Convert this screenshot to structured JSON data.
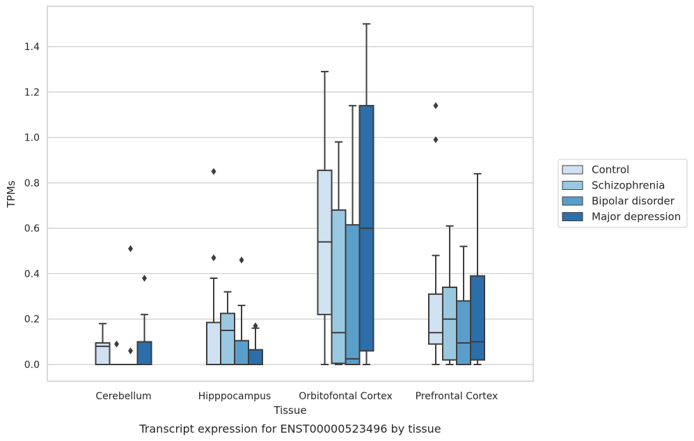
{
  "caption": "Transcript expression for ENST00000523496 by tissue",
  "chart_data": {
    "type": "boxplot",
    "xlabel": "Tissue",
    "ylabel": "TPMs",
    "ylim": [
      -0.07,
      1.55
    ],
    "yticks": [
      0.0,
      0.2,
      0.4,
      0.6,
      0.8,
      1.0,
      1.2,
      1.4
    ],
    "ytick_labels": [
      "0.0",
      "0.2",
      "0.4",
      "0.6",
      "0.8",
      "1.0",
      "1.2",
      "1.4"
    ],
    "grid": "horizontal",
    "legend_position": "right",
    "categories": [
      "Cerebellum",
      "Hipppocampus",
      "Orbitofontal Cortex",
      "Prefrontal Cortex"
    ],
    "series": [
      {
        "name": "Control",
        "color": "#d0e1f2",
        "boxes": [
          {
            "q1": 0.0,
            "median": 0.08,
            "q3": 0.095,
            "whisker_low": 0.0,
            "whisker_high": 0.18,
            "outliers": []
          },
          {
            "q1": 0.0,
            "median": 0.0,
            "q3": 0.185,
            "whisker_low": 0.0,
            "whisker_high": 0.38,
            "outliers": [
              0.47,
              0.85
            ]
          },
          {
            "q1": 0.22,
            "median": 0.54,
            "q3": 0.855,
            "whisker_low": 0.0,
            "whisker_high": 1.29,
            "outliers": []
          },
          {
            "q1": 0.09,
            "median": 0.14,
            "q3": 0.31,
            "whisker_low": 0.0,
            "whisker_high": 0.48,
            "outliers": [
              0.99,
              1.14
            ]
          }
        ]
      },
      {
        "name": "Schizophrenia",
        "color": "#9ac8e0",
        "boxes": [
          {
            "q1": 0.0,
            "median": 0.0,
            "q3": 0.0,
            "whisker_low": 0.0,
            "whisker_high": 0.0,
            "outliers": [
              0.09
            ]
          },
          {
            "q1": 0.0,
            "median": 0.15,
            "q3": 0.225,
            "whisker_low": 0.0,
            "whisker_high": 0.32,
            "outliers": []
          },
          {
            "q1": 0.005,
            "median": 0.14,
            "q3": 0.68,
            "whisker_low": 0.0,
            "whisker_high": 0.98,
            "outliers": []
          },
          {
            "q1": 0.02,
            "median": 0.2,
            "q3": 0.34,
            "whisker_low": 0.0,
            "whisker_high": 0.61,
            "outliers": []
          }
        ]
      },
      {
        "name": "Bipolar disorder",
        "color": "#5a9ecb",
        "boxes": [
          {
            "q1": 0.0,
            "median": 0.0,
            "q3": 0.0,
            "whisker_low": 0.0,
            "whisker_high": 0.0,
            "outliers": [
              0.06,
              0.51
            ]
          },
          {
            "q1": 0.0,
            "median": 0.0,
            "q3": 0.105,
            "whisker_low": 0.0,
            "whisker_high": 0.26,
            "outliers": [
              0.46
            ]
          },
          {
            "q1": 0.0,
            "median": 0.025,
            "q3": 0.615,
            "whisker_low": 0.0,
            "whisker_high": 1.14,
            "outliers": []
          },
          {
            "q1": 0.0,
            "median": 0.095,
            "q3": 0.28,
            "whisker_low": 0.0,
            "whisker_high": 0.52,
            "outliers": []
          }
        ]
      },
      {
        "name": "Major depression",
        "color": "#2c6ea9",
        "boxes": [
          {
            "q1": 0.0,
            "median": 0.0,
            "q3": 0.1,
            "whisker_low": 0.0,
            "whisker_high": 0.22,
            "outliers": [
              0.38
            ]
          },
          {
            "q1": 0.0,
            "median": 0.0,
            "q3": 0.065,
            "whisker_low": 0.0,
            "whisker_high": 0.16,
            "outliers": [
              0.17
            ]
          },
          {
            "q1": 0.06,
            "median": 0.6,
            "q3": 1.14,
            "whisker_low": 0.0,
            "whisker_high": 1.5,
            "outliers": []
          },
          {
            "q1": 0.02,
            "median": 0.1,
            "q3": 0.39,
            "whisker_low": 0.0,
            "whisker_high": 0.84,
            "outliers": []
          }
        ]
      }
    ]
  }
}
